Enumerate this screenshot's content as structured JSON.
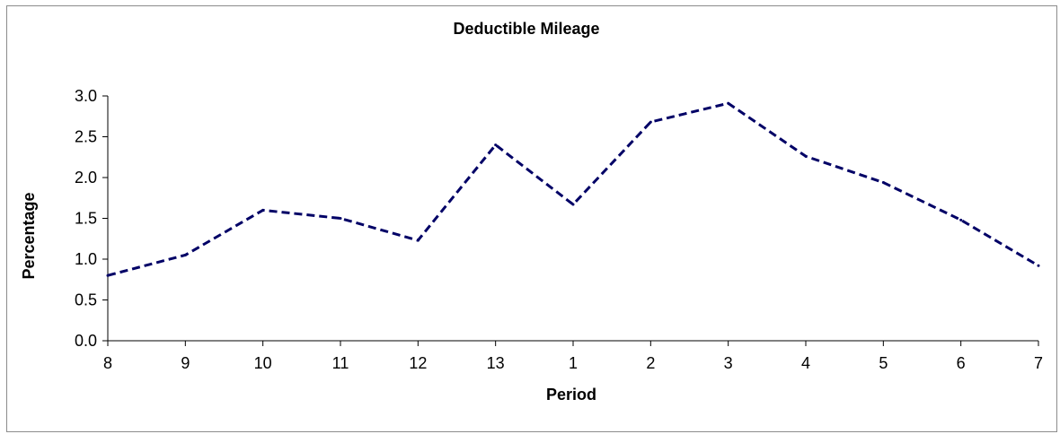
{
  "chart_data": {
    "type": "line",
    "title": "Deductible Mileage",
    "xlabel": "Period",
    "ylabel": "Percentage",
    "categories": [
      "8",
      "9",
      "10",
      "11",
      "12",
      "13",
      "1",
      "2",
      "3",
      "4",
      "5",
      "6",
      "7"
    ],
    "series": [
      {
        "values": [
          0.8,
          1.05,
          1.6,
          1.5,
          1.23,
          2.4,
          1.67,
          2.68,
          2.91,
          2.26,
          1.94,
          1.48,
          0.92
        ],
        "color": "#000066",
        "line_style": "dashed"
      }
    ],
    "ylim": [
      0,
      3.0
    ],
    "yticks": [
      "0.0",
      "0.5",
      "1.0",
      "1.5",
      "2.0",
      "2.5",
      "3.0"
    ],
    "grid": false,
    "legend": "none"
  }
}
